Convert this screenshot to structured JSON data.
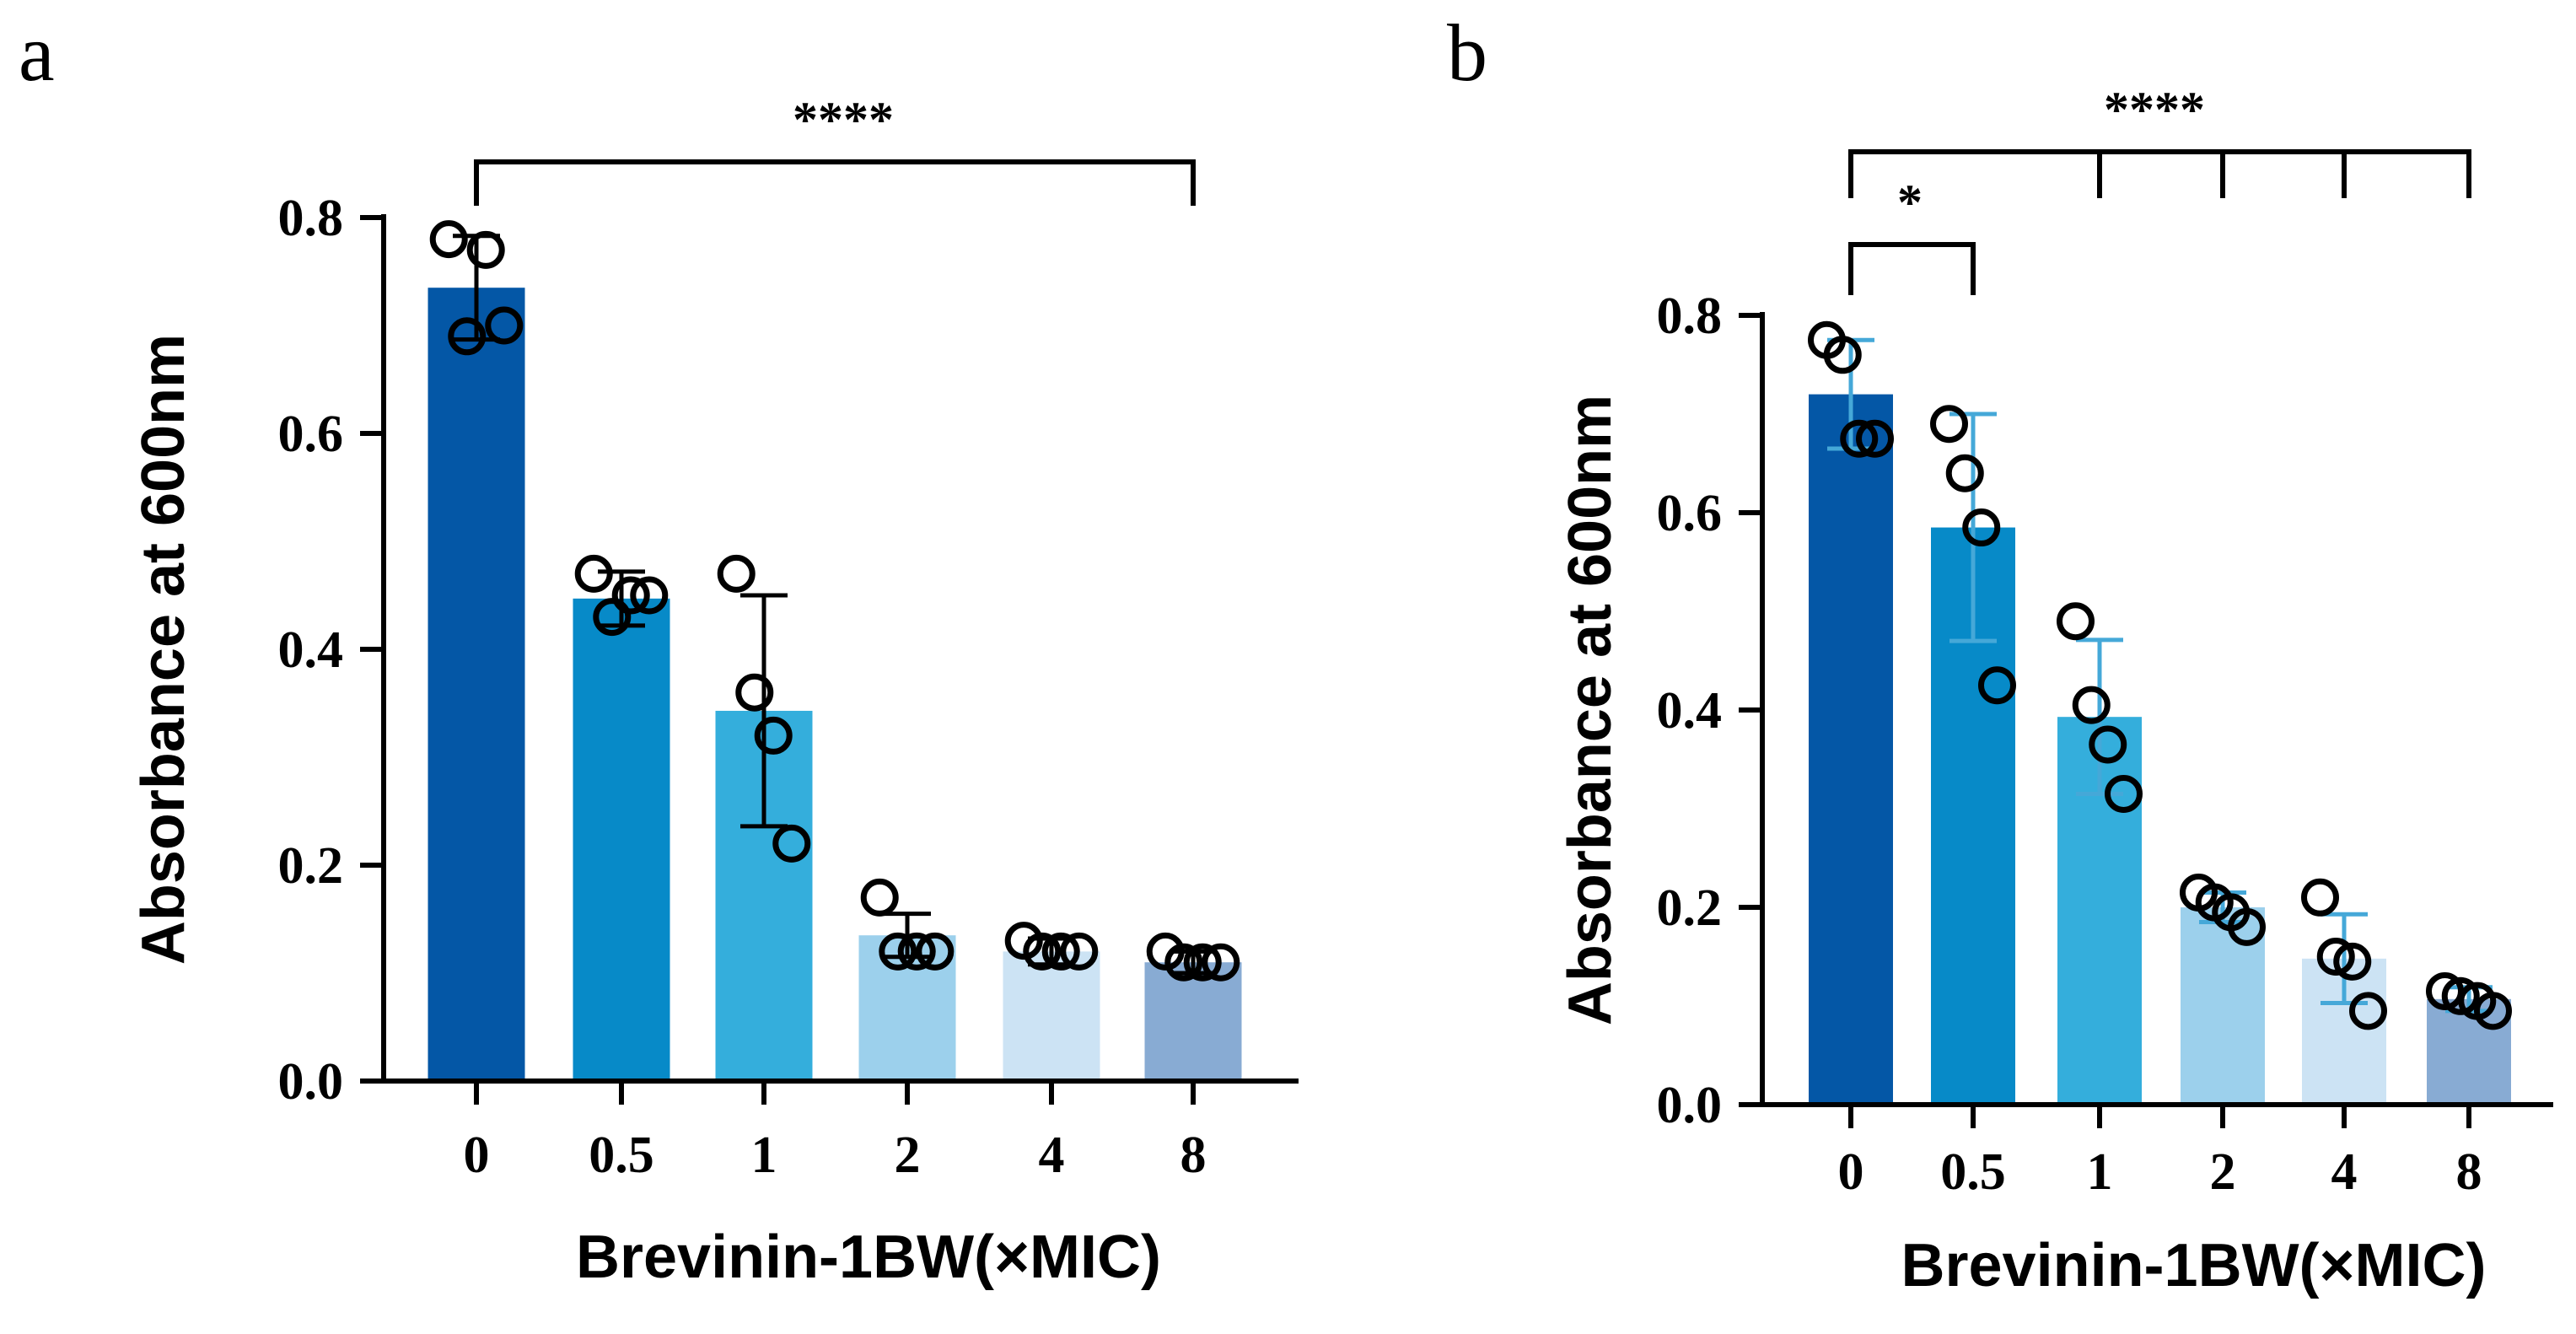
{
  "chart_data": [
    {
      "panel": "a",
      "type": "bar",
      "xlabel": "Brevinin-1BW(×MIC)",
      "ylabel": "Absorbance at 600nm",
      "ylim": [
        0,
        0.8
      ],
      "yticks": [
        "0.0",
        "0.2",
        "0.4",
        "0.6",
        "0.8"
      ],
      "ytick_values": [
        0,
        0.2,
        0.4,
        0.6,
        0.8
      ],
      "categories": [
        "0",
        "0.5",
        "1",
        "2",
        "4",
        "8"
      ],
      "values": [
        0.735,
        0.447,
        0.343,
        0.135,
        0.12,
        0.11
      ],
      "errors": [
        0.048,
        0.025,
        0.107,
        0.02,
        0.012,
        0.01
      ],
      "points": [
        [
          0.78,
          0.69,
          0.77,
          0.7
        ],
        [
          0.47,
          0.43,
          0.45,
          0.45
        ],
        [
          0.47,
          0.36,
          0.32,
          0.22
        ],
        [
          0.17,
          0.12,
          0.12,
          0.12
        ],
        [
          0.13,
          0.12,
          0.12,
          0.12
        ],
        [
          0.12,
          0.11,
          0.11,
          0.11
        ]
      ],
      "bar_colors": [
        "#0457A6",
        "#078AC8",
        "#34AEDC",
        "#9CD0EC",
        "#CCE3F4",
        "#88ABD3"
      ],
      "error_bar_color": "#000000",
      "significance": [
        {
          "label": "****",
          "from": 0,
          "to": [
            5
          ],
          "level": 0.86
        }
      ]
    },
    {
      "panel": "b",
      "type": "bar",
      "xlabel": "Brevinin-1BW(×MIC)",
      "ylabel": "Absorbance at 600nm",
      "ylim": [
        0,
        0.8
      ],
      "yticks": [
        "0.0",
        "0.2",
        "0.4",
        "0.6",
        "0.8"
      ],
      "ytick_values": [
        0,
        0.2,
        0.4,
        0.6,
        0.8
      ],
      "categories": [
        "0",
        "0.5",
        "1",
        "2",
        "4",
        "8"
      ],
      "values": [
        0.72,
        0.585,
        0.393,
        0.2,
        0.148,
        0.107
      ],
      "errors": [
        0.055,
        0.115,
        0.078,
        0.015,
        0.045,
        0.012
      ],
      "points": [
        [
          0.775,
          0.76,
          0.675,
          0.675
        ],
        [
          0.69,
          0.64,
          0.585,
          0.425
        ],
        [
          0.49,
          0.405,
          0.365,
          0.315
        ],
        [
          0.215,
          0.205,
          0.195,
          0.18
        ],
        [
          0.21,
          0.15,
          0.145,
          0.095
        ],
        [
          0.115,
          0.11,
          0.105,
          0.095
        ]
      ],
      "bar_colors": [
        "#0457A6",
        "#078AC8",
        "#34AEDC",
        "#9CD0EC",
        "#CCE3F4",
        "#88ABD3"
      ],
      "error_bar_color": "#45A8D8",
      "significance": [
        {
          "label": "****",
          "from": 0,
          "to": [
            2,
            3,
            4,
            5
          ],
          "level": 0.96
        },
        {
          "label": "*",
          "from": 0,
          "to": [
            1
          ],
          "level": 0.87
        }
      ]
    }
  ]
}
